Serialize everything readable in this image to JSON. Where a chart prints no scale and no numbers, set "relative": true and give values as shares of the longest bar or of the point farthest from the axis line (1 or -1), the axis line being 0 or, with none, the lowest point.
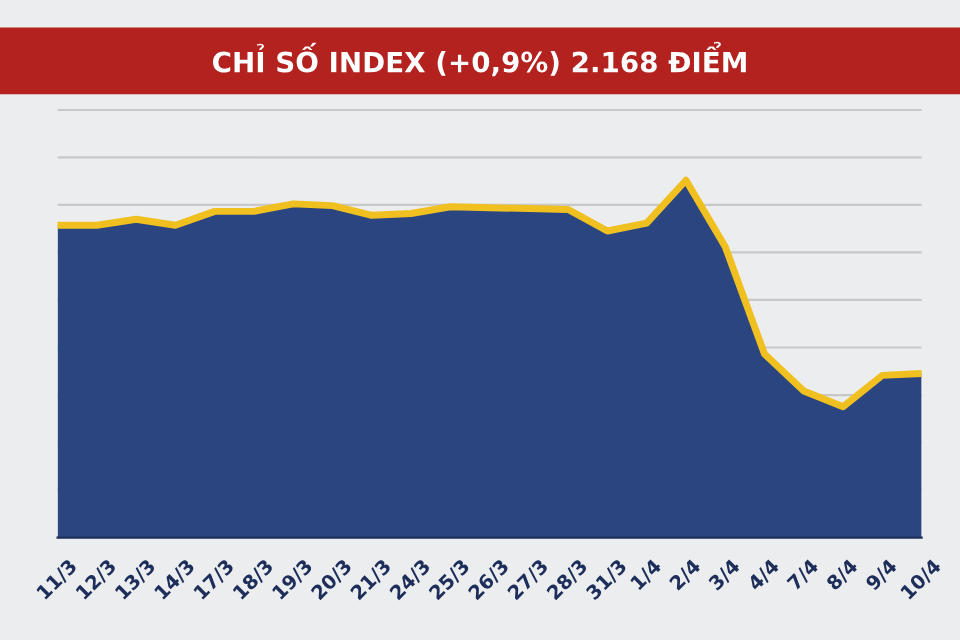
{
  "chart_data": {
    "type": "area",
    "title": "CHỈ SỐ INDEX (+0,9%) 2.168 ĐIỂM",
    "relative": true,
    "grid": "y",
    "categories": [
      "11/3",
      "12/3",
      "13/3",
      "14/3",
      "17/3",
      "18/3",
      "19/3",
      "20/3",
      "21/3",
      "24/3",
      "25/3",
      "26/3",
      "27/3",
      "28/3",
      "31/3",
      "1/4",
      "2/4",
      "3/4",
      "4/4",
      "7/4",
      "8/4",
      "9/4",
      "10/4"
    ],
    "series": [
      {
        "color": "#2a4580",
        "values": [
          0.874,
          0.874,
          0.891,
          0.874,
          0.913,
          0.913,
          0.934,
          0.929,
          0.902,
          0.907,
          0.926,
          0.923,
          0.921,
          0.918,
          0.858,
          0.88,
          1,
          0.814,
          0.514,
          0.41,
          0.366,
          0.454,
          0.459
        ]
      },
      {
        "type": "line",
        "color": "#f0c020",
        "values": [
          0.874,
          0.874,
          0.891,
          0.874,
          0.913,
          0.913,
          0.934,
          0.929,
          0.902,
          0.907,
          0.926,
          0.923,
          0.921,
          0.918,
          0.858,
          0.88,
          1,
          0.814,
          0.514,
          0.41,
          0.366,
          0.454,
          0.459
        ]
      }
    ]
  }
}
